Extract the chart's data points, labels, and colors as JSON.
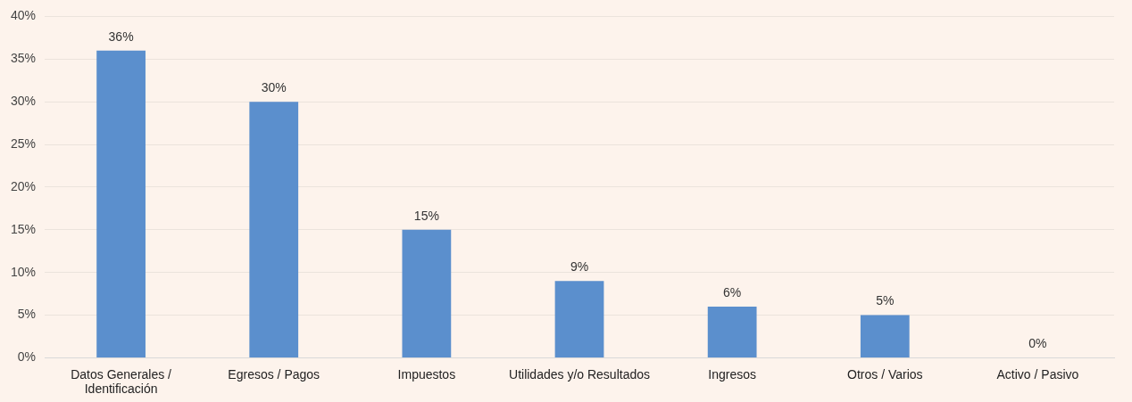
{
  "chart_data": {
    "type": "bar",
    "categories": [
      "Datos Generales / Identificación",
      "Egresos / Pagos",
      "Impuestos",
      "Utilidades y/o Resultados",
      "Ingresos",
      "Otros / Varios",
      "Activo / Pasivo"
    ],
    "values": [
      36,
      30,
      15,
      9,
      6,
      5,
      0
    ],
    "value_labels": [
      "36%",
      "30%",
      "15%",
      "9%",
      "6%",
      "5%",
      "0%"
    ],
    "color": "#5b8fcd",
    "ylim": [
      0,
      40
    ],
    "yticks": [
      {
        "value": 0,
        "label": "0%"
      },
      {
        "value": 5,
        "label": "5%"
      },
      {
        "value": 10,
        "label": "10%"
      },
      {
        "value": 15,
        "label": "15%"
      },
      {
        "value": 20,
        "label": "20%"
      },
      {
        "value": 25,
        "label": "25%"
      },
      {
        "value": 30,
        "label": "30%"
      },
      {
        "value": 35,
        "label": "35%"
      },
      {
        "value": 40,
        "label": "40%"
      }
    ],
    "grid": "y",
    "legend": false
  }
}
